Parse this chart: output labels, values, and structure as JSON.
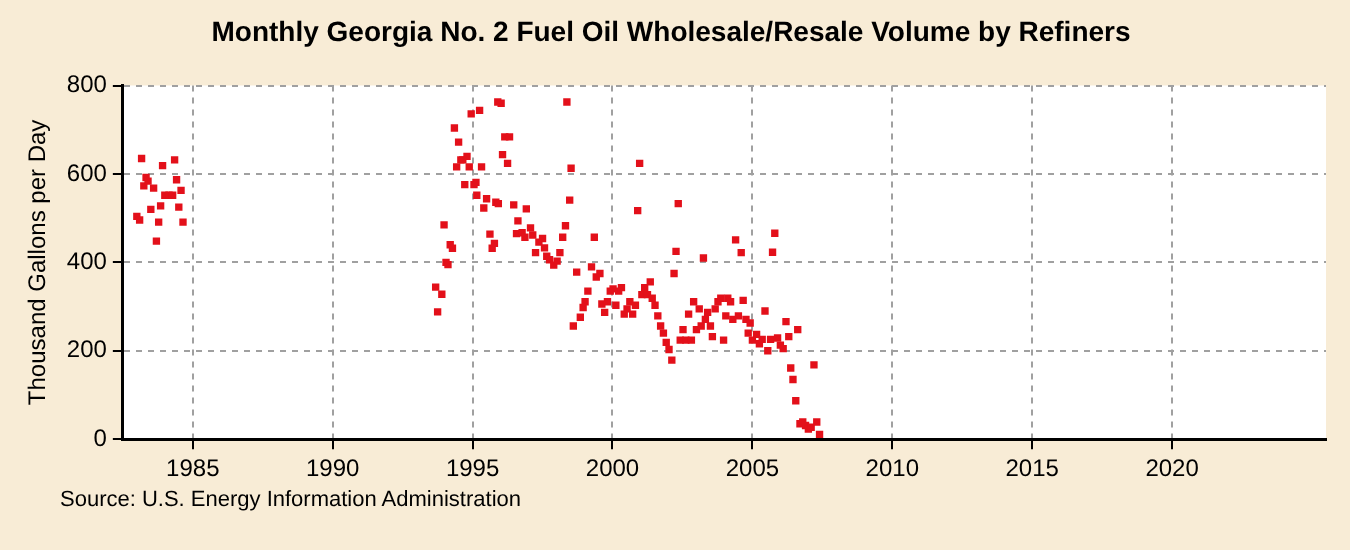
{
  "chart_data": {
    "type": "scatter",
    "title": "Monthly Georgia No. 2 Fuel Oil Wholesale/Resale Volume by Refiners",
    "ylabel": "Thousand Gallons per Day",
    "annotations": [
      "Source: U.S. Energy Information Administration"
    ],
    "xlim": [
      1982.5,
      2025.5
    ],
    "xticks": [
      1985,
      1990,
      1995,
      2000,
      2005,
      2010,
      2015,
      2020
    ],
    "ylim": [
      0,
      800
    ],
    "yticks": [
      0,
      200,
      400,
      600,
      800
    ],
    "grid": true,
    "legend": false,
    "marker": "square",
    "series": [
      {
        "color": "#e3101a",
        "x": [
          1983.0,
          1983.1,
          1983.17,
          1983.25,
          1983.33,
          1983.4,
          1983.5,
          1983.6,
          1983.7,
          1983.78,
          1983.85,
          1983.92,
          1984.0,
          1984.15,
          1984.28,
          1984.35,
          1984.42,
          1984.5,
          1984.58,
          1984.65,
          1993.68,
          1993.75,
          1993.9,
          1993.98,
          1994.05,
          1994.12,
          1994.2,
          1994.28,
          1994.35,
          1994.43,
          1994.5,
          1994.58,
          1994.65,
          1994.72,
          1994.8,
          1994.88,
          1994.95,
          1995.05,
          1995.12,
          1995.15,
          1995.25,
          1995.32,
          1995.4,
          1995.5,
          1995.62,
          1995.7,
          1995.78,
          1995.83,
          1995.9,
          1995.92,
          1996.02,
          1996.07,
          1996.15,
          1996.25,
          1996.32,
          1996.47,
          1996.57,
          1996.62,
          1996.77,
          1996.87,
          1996.92,
          1997.07,
          1997.15,
          1997.25,
          1997.37,
          1997.5,
          1997.57,
          1997.65,
          1997.75,
          1997.9,
          1998.02,
          1998.12,
          1998.22,
          1998.32,
          1998.37,
          1998.47,
          1998.52,
          1998.6,
          1998.72,
          1998.85,
          1998.95,
          1999.02,
          1999.12,
          1999.25,
          1999.35,
          1999.42,
          1999.55,
          1999.62,
          1999.72,
          1999.82,
          1999.92,
          2000.02,
          2000.12,
          2000.22,
          2000.32,
          2000.42,
          2000.52,
          2000.62,
          2000.72,
          2000.82,
          2000.9,
          2000.97,
          2001.05,
          2001.15,
          2001.25,
          2001.35,
          2001.42,
          2001.52,
          2001.62,
          2001.72,
          2001.82,
          2001.92,
          2002.02,
          2002.12,
          2002.2,
          2002.27,
          2002.35,
          2002.42,
          2002.52,
          2002.62,
          2002.72,
          2002.82,
          2002.9,
          2003.0,
          2003.1,
          2003.17,
          2003.25,
          2003.32,
          2003.4,
          2003.5,
          2003.57,
          2003.67,
          2003.77,
          2003.87,
          2003.97,
          2004.05,
          2004.12,
          2004.22,
          2004.3,
          2004.4,
          2004.5,
          2004.6,
          2004.67,
          2004.77,
          2004.85,
          2004.92,
          2005.0,
          2005.15,
          2005.25,
          2005.35,
          2005.45,
          2005.55,
          2005.65,
          2005.72,
          2005.8,
          2005.9,
          2006.0,
          2006.1,
          2006.2,
          2006.3,
          2006.37,
          2006.45,
          2006.55,
          2006.62,
          2006.7,
          2006.8,
          2006.9,
          2007.0,
          2007.1,
          2007.2,
          2007.3,
          2007.4
        ],
        "values": [
          504,
          496,
          635,
          573,
          592,
          584,
          520,
          568,
          448,
          491,
          528,
          619,
          552,
          552,
          552,
          632,
          587,
          525,
          563,
          491,
          344,
          288,
          328,
          485,
          400,
          395,
          440,
          432,
          704,
          616,
          672,
          632,
          632,
          576,
          640,
          616,
          736,
          576,
          581,
          552,
          744,
          616,
          523,
          544,
          464,
          432,
          443,
          536,
          763,
          533,
          760,
          644,
          684,
          624,
          684,
          530,
          465,
          494,
          467,
          457,
          521,
          478,
          462,
          422,
          446,
          454,
          433,
          414,
          406,
          394,
          403,
          422,
          457,
          483,
          763,
          541,
          613,
          256,
          378,
          276,
          298,
          311,
          335,
          390,
          457,
          367,
          375,
          306,
          287,
          311,
          335,
          340,
          303,
          335,
          343,
          283,
          295,
          311,
          283,
          303,
          517,
          624,
          327,
          343,
          327,
          356,
          319,
          303,
          279,
          256,
          240,
          219,
          203,
          179,
          375,
          425,
          533,
          224,
          248,
          224,
          283,
          224,
          311,
          248,
          295,
          256,
          410,
          271,
          287,
          256,
          232,
          295,
          311,
          319,
          224,
          279,
          319,
          311,
          271,
          451,
          279,
          422,
          314,
          271,
          240,
          263,
          224,
          237,
          216,
          226,
          290,
          200,
          226,
          423,
          466,
          229,
          213,
          205,
          266,
          232,
          161,
          135,
          87,
          248,
          35,
          39,
          31,
          23,
          27,
          168,
          39,
          11
        ]
      }
    ]
  }
}
